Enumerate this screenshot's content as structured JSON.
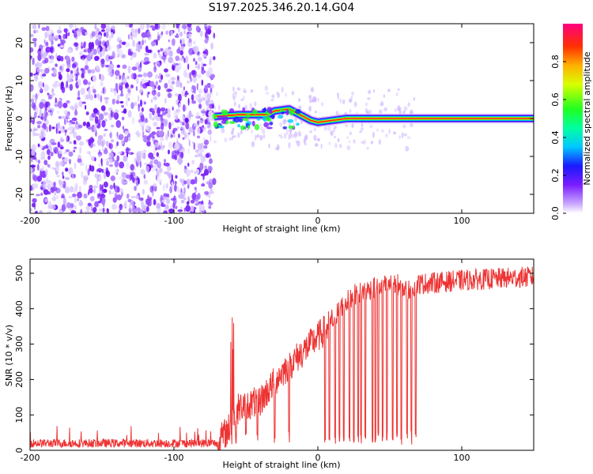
{
  "title": "S197.2025.346.20.14.G04",
  "colors": {
    "line": "#ee3333",
    "background": "#ffffff",
    "axis": "#000000"
  },
  "chart_data": [
    {
      "type": "heatmap",
      "title": "S197.2025.346.20.14.G04",
      "xlabel": "Height of straight line (km)",
      "ylabel": "Frequency (Hz)",
      "xlim": [
        -200,
        150
      ],
      "ylim": [
        -25,
        25
      ],
      "xticks": [
        -200,
        -100,
        0,
        100
      ],
      "xtick_labels": [
        "-200",
        "-100",
        "0",
        "100"
      ],
      "yticks": [
        -20,
        -10,
        0,
        10,
        20
      ],
      "ytick_labels": [
        "-20",
        "-10",
        "0",
        "10",
        "20"
      ],
      "noise_region_km": [
        -200,
        -72
      ],
      "signal_track": [
        {
          "x": -72,
          "f": 0.5
        },
        {
          "x": -55,
          "f": 1.0
        },
        {
          "x": -35,
          "f": 1.0
        },
        {
          "x": -30,
          "f": 2.0
        },
        {
          "x": -20,
          "f": 2.5
        },
        {
          "x": -15,
          "f": 1.5
        },
        {
          "x": -10,
          "f": 0.5
        },
        {
          "x": -5,
          "f": -0.5
        },
        {
          "x": 0,
          "f": -1.0
        },
        {
          "x": 10,
          "f": -0.5
        },
        {
          "x": 20,
          "f": 0.0
        },
        {
          "x": 150,
          "f": 0.0
        }
      ],
      "colorbar": {
        "label": "Normalized spectral amplitude",
        "range": [
          0,
          1
        ],
        "ticks": [
          0.0,
          0.2,
          0.4,
          0.6,
          0.8
        ],
        "tick_labels": [
          "0.0",
          "0.2",
          "0.4",
          "0.6",
          "0.8"
        ]
      }
    },
    {
      "type": "line",
      "xlabel": "Height of straight line (km)",
      "ylabel": "SNR (10 * v/v)",
      "xlim": [
        -200,
        150
      ],
      "ylim": [
        0,
        540
      ],
      "xticks": [
        -200,
        -100,
        0,
        100
      ],
      "xtick_labels": [
        "-200",
        "-100",
        "0",
        "100"
      ],
      "yticks": [
        0,
        100,
        200,
        300,
        400,
        500
      ],
      "ytick_labels": [
        "0",
        "100",
        "200",
        "300",
        "400",
        "500"
      ],
      "series": [
        {
          "name": "SNR",
          "trend_x": [
            -200,
            -70,
            -62,
            -55,
            -40,
            -25,
            -10,
            0,
            10,
            15,
            25,
            40,
            55,
            62,
            70,
            100,
            150
          ],
          "trend_y": [
            20,
            20,
            60,
            120,
            140,
            220,
            280,
            320,
            360,
            400,
            440,
            460,
            470,
            450,
            470,
            480,
            490
          ],
          "dropouts_x": [
            -60,
            -57,
            -50,
            -42,
            -30,
            -20,
            5,
            8,
            12,
            15,
            18,
            22,
            25,
            28,
            30,
            33,
            38,
            40,
            42,
            45,
            48,
            52,
            55,
            58,
            62,
            65,
            68
          ]
        }
      ]
    }
  ]
}
